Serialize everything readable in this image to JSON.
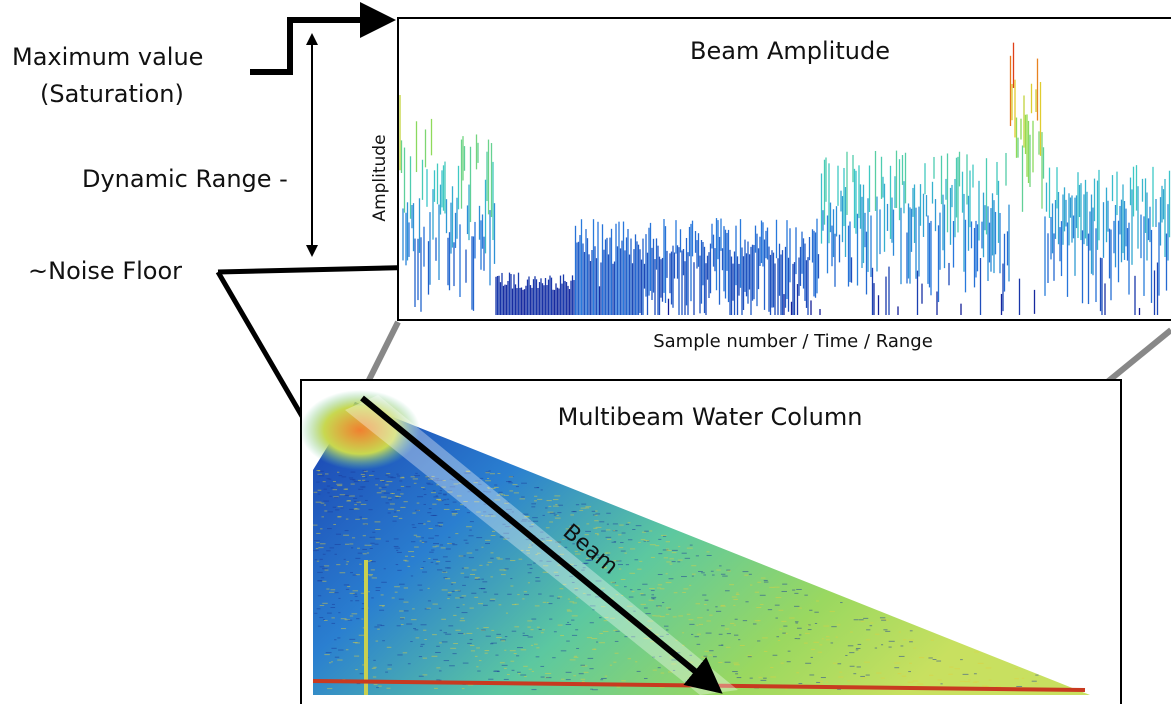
{
  "labels": {
    "max_value": "Maximum value",
    "saturation": "(Saturation)",
    "dynamic_range": "Dynamic Range -",
    "noise_floor": "~Noise Floor"
  },
  "amplitude_panel": {
    "title": "Beam Amplitude",
    "y_label": "Amplitude",
    "x_label": "Sample number / Time / Range"
  },
  "water_column_panel": {
    "title": "Multibeam Water Column",
    "beam_label": "Beam"
  }
}
